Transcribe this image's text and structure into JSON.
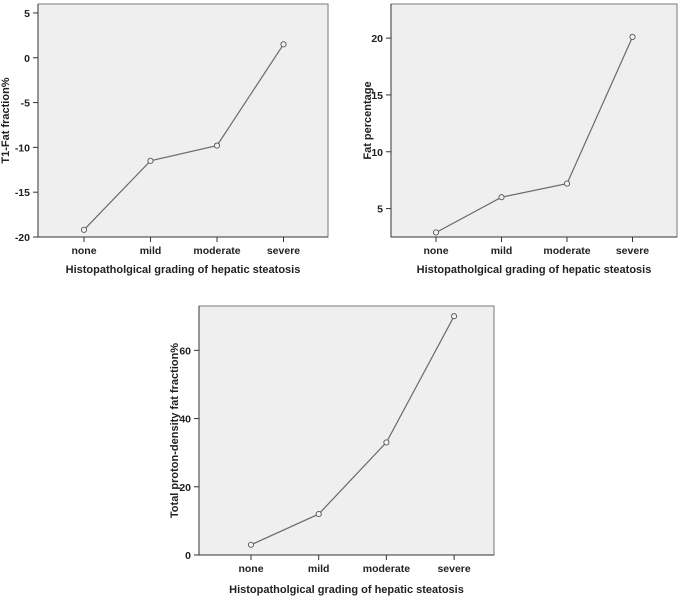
{
  "chart_data": [
    {
      "type": "line",
      "categories": [
        "none",
        "mild",
        "moderate",
        "severe"
      ],
      "values": [
        -19.2,
        -11.5,
        -9.8,
        1.5
      ],
      "xlabel": "Histopatholgical grading of hepatic steatosis",
      "ylabel": "T1-Fat fraction%",
      "ylim": [
        -20,
        6
      ],
      "yticks": [
        -20,
        -15,
        -10,
        -5,
        0,
        5
      ],
      "grid": false
    },
    {
      "type": "line",
      "categories": [
        "none",
        "mild",
        "moderate",
        "severe"
      ],
      "values": [
        2.9,
        6.0,
        7.2,
        20.1
      ],
      "xlabel": "Histopatholgical grading of hepatic steatosis",
      "ylabel": "Fat percentage",
      "ylim": [
        2.5,
        23
      ],
      "yticks": [
        5,
        10,
        15,
        20
      ],
      "grid": false
    },
    {
      "type": "line",
      "categories": [
        "none",
        "mild",
        "moderate",
        "severe"
      ],
      "values": [
        3,
        12,
        33,
        70
      ],
      "xlabel": "Histopatholgical grading of hepatic steatosis",
      "ylabel": "Total proton-density fat fraction%",
      "ylim": [
        0,
        73
      ],
      "yticks": [
        0,
        20,
        40,
        60
      ],
      "grid": false
    }
  ]
}
